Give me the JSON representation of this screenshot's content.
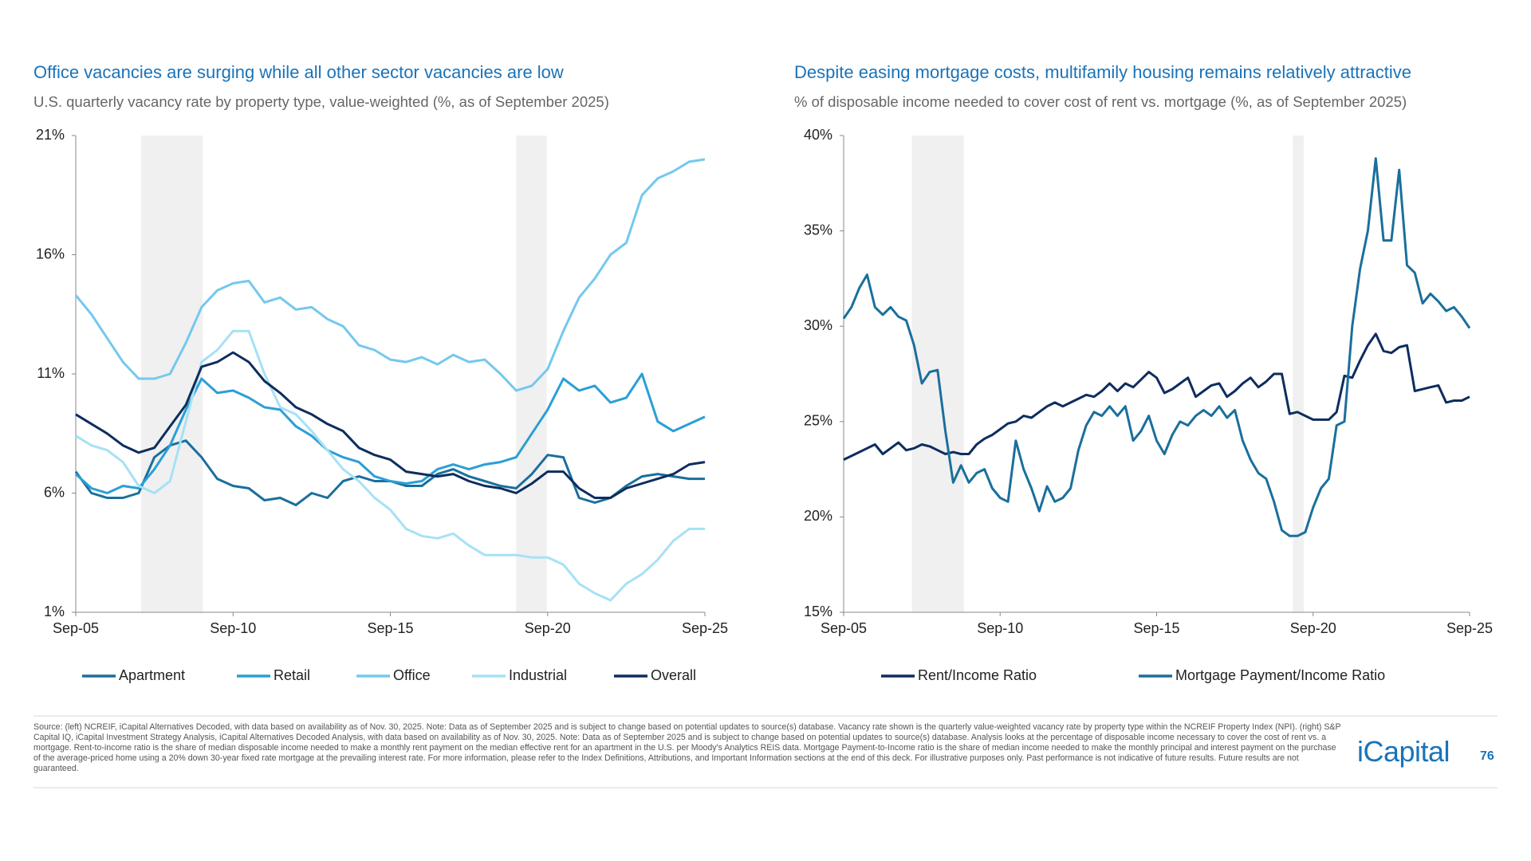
{
  "chart_data": [
    {
      "type": "line",
      "title": "Office vacancies are surging while all other sector vacancies are low",
      "subtitle": "U.S. quarterly vacancy rate by property type, value-weighted (%, as of September 2025)",
      "x": [
        2005.75,
        2006.25,
        2006.75,
        2007.25,
        2007.75,
        2008.25,
        2008.75,
        2009.25,
        2009.75,
        2010.25,
        2010.75,
        2011.25,
        2011.75,
        2012.25,
        2012.75,
        2013.25,
        2013.75,
        2014.25,
        2014.75,
        2015.25,
        2015.75,
        2016.25,
        2016.75,
        2017.25,
        2017.75,
        2018.25,
        2018.75,
        2019.25,
        2019.75,
        2020.25,
        2020.75,
        2021.25,
        2021.75,
        2022.25,
        2022.75,
        2023.25,
        2023.75,
        2024.25,
        2024.75,
        2025.25,
        2025.75
      ],
      "xlim": [
        2005.75,
        2025.75
      ],
      "xticks": [
        {
          "value": 2005.75,
          "label": "Sep-05"
        },
        {
          "value": 2010.75,
          "label": "Sep-10"
        },
        {
          "value": 2015.75,
          "label": "Sep-15"
        },
        {
          "value": 2020.75,
          "label": "Sep-20"
        },
        {
          "value": 2025.75,
          "label": "Sep-25"
        }
      ],
      "ylim": [
        1,
        21
      ],
      "yticks": [
        {
          "value": 1,
          "label": "1%"
        },
        {
          "value": 6,
          "label": "6%"
        },
        {
          "value": 11,
          "label": "11%"
        },
        {
          "value": 16,
          "label": "16%"
        },
        {
          "value": 21,
          "label": "21%"
        }
      ],
      "shaded_ranges": [
        [
          2007.83,
          2009.79
        ],
        [
          2019.75,
          2020.72
        ]
      ],
      "series": [
        {
          "name": "Apartment",
          "color": "#1a6f9c",
          "values": [
            6.9,
            6.0,
            5.8,
            5.8,
            6.0,
            7.5,
            8.0,
            8.2,
            7.5,
            6.6,
            6.3,
            6.2,
            5.7,
            5.8,
            5.5,
            6.0,
            5.8,
            6.5,
            6.7,
            6.5,
            6.5,
            6.3,
            6.3,
            6.8,
            7.0,
            6.7,
            6.5,
            6.3,
            6.2,
            6.8,
            7.6,
            7.5,
            5.8,
            5.6,
            5.8,
            6.3,
            6.7,
            6.8,
            6.7,
            6.6,
            6.6
          ]
        },
        {
          "name": "Retail",
          "color": "#2a9fd6",
          "values": [
            6.8,
            6.2,
            6.0,
            6.3,
            6.2,
            7.0,
            8.0,
            9.5,
            10.8,
            10.2,
            10.3,
            10.0,
            9.6,
            9.5,
            8.8,
            8.4,
            7.8,
            7.5,
            7.3,
            6.7,
            6.5,
            6.4,
            6.5,
            7.0,
            7.2,
            7.0,
            7.2,
            7.3,
            7.5,
            8.5,
            9.5,
            10.8,
            10.3,
            10.5,
            9.8,
            10.0,
            11.0,
            9.0,
            8.6,
            8.9,
            9.2
          ]
        },
        {
          "name": "Office",
          "color": "#74c8ee",
          "values": [
            14.3,
            13.5,
            12.5,
            11.5,
            10.8,
            10.8,
            11.0,
            12.3,
            13.8,
            14.5,
            14.8,
            14.9,
            14.0,
            14.2,
            13.7,
            13.8,
            13.3,
            13.0,
            12.2,
            12.0,
            11.6,
            11.5,
            11.7,
            11.4,
            11.8,
            11.5,
            11.6,
            11.0,
            10.3,
            10.5,
            11.2,
            12.8,
            14.2,
            15.0,
            16.0,
            16.5,
            18.5,
            19.2,
            19.5,
            19.9,
            20.0
          ]
        },
        {
          "name": "Industrial",
          "color": "#a6e1f5",
          "values": [
            8.4,
            8.0,
            7.8,
            7.3,
            6.3,
            6.0,
            6.5,
            9.0,
            11.5,
            12.0,
            12.8,
            12.8,
            11.0,
            9.6,
            9.3,
            8.6,
            7.8,
            7.0,
            6.5,
            5.8,
            5.3,
            4.5,
            4.2,
            4.1,
            4.3,
            3.8,
            3.4,
            3.4,
            3.4,
            3.3,
            3.3,
            3.0,
            2.2,
            1.8,
            1.5,
            2.2,
            2.6,
            3.2,
            4.0,
            4.5,
            4.5
          ]
        },
        {
          "name": "Overall",
          "color": "#0d2d5e",
          "values": [
            9.3,
            8.9,
            8.5,
            8.0,
            7.7,
            7.9,
            8.8,
            9.7,
            11.3,
            11.5,
            11.9,
            11.5,
            10.7,
            10.2,
            9.6,
            9.3,
            8.9,
            8.6,
            7.9,
            7.6,
            7.4,
            6.9,
            6.8,
            6.7,
            6.8,
            6.5,
            6.3,
            6.2,
            6.0,
            6.4,
            6.9,
            6.9,
            6.2,
            5.8,
            5.8,
            6.2,
            6.4,
            6.6,
            6.8,
            7.2,
            7.3
          ]
        }
      ]
    },
    {
      "type": "line",
      "title": "Despite easing mortgage costs, multifamily housing remains relatively attractive",
      "subtitle": "% of disposable income needed to cover cost of rent vs. mortgage (%, as of September 2025)",
      "x": [
        2005.75,
        2006,
        2006.25,
        2006.5,
        2006.75,
        2007,
        2007.25,
        2007.5,
        2007.75,
        2008,
        2008.25,
        2008.5,
        2008.75,
        2009,
        2009.25,
        2009.5,
        2009.75,
        2010,
        2010.25,
        2010.5,
        2010.75,
        2011,
        2011.25,
        2011.5,
        2011.75,
        2012,
        2012.25,
        2012.5,
        2012.75,
        2013,
        2013.25,
        2013.5,
        2013.75,
        2014,
        2014.25,
        2014.5,
        2014.75,
        2015,
        2015.25,
        2015.5,
        2015.75,
        2016,
        2016.25,
        2016.5,
        2016.75,
        2017,
        2017.25,
        2017.5,
        2017.75,
        2018,
        2018.25,
        2018.5,
        2018.75,
        2019,
        2019.25,
        2019.5,
        2019.75,
        2020,
        2020.25,
        2020.5,
        2020.75,
        2021,
        2021.25,
        2021.5,
        2021.75,
        2022,
        2022.25,
        2022.5,
        2022.75,
        2023,
        2023.25,
        2023.5,
        2023.75,
        2024,
        2024.25,
        2024.5,
        2024.75,
        2025,
        2025.25,
        2025.5,
        2025.75
      ],
      "xlim": [
        2005.75,
        2025.75
      ],
      "xticks": [
        {
          "value": 2005.75,
          "label": "Sep-05"
        },
        {
          "value": 2010.75,
          "label": "Sep-10"
        },
        {
          "value": 2015.75,
          "label": "Sep-15"
        },
        {
          "value": 2020.75,
          "label": "Sep-20"
        },
        {
          "value": 2025.75,
          "label": "Sep-25"
        }
      ],
      "ylim": [
        15,
        40
      ],
      "yticks": [
        {
          "value": 15,
          "label": "15%"
        },
        {
          "value": 20,
          "label": "20%"
        },
        {
          "value": 25,
          "label": "25%"
        },
        {
          "value": 30,
          "label": "30%"
        },
        {
          "value": 35,
          "label": "35%"
        },
        {
          "value": 40,
          "label": "40%"
        }
      ],
      "shaded_ranges": [
        [
          2007.93,
          2009.59
        ],
        [
          2020.1,
          2020.45
        ]
      ],
      "series": [
        {
          "name": "Rent/Income Ratio",
          "color": "#0d2d5e",
          "values": [
            23.0,
            23.2,
            23.4,
            23.6,
            23.8,
            23.3,
            23.6,
            23.9,
            23.5,
            23.6,
            23.8,
            23.7,
            23.5,
            23.3,
            23.4,
            23.3,
            23.3,
            23.8,
            24.1,
            24.3,
            24.6,
            24.9,
            25.0,
            25.3,
            25.2,
            25.5,
            25.8,
            26.0,
            25.8,
            26.0,
            26.2,
            26.4,
            26.3,
            26.6,
            27.0,
            26.6,
            27.0,
            26.8,
            27.2,
            27.6,
            27.3,
            26.5,
            26.7,
            27.0,
            27.3,
            26.3,
            26.6,
            26.9,
            27.0,
            26.3,
            26.6,
            27.0,
            27.3,
            26.8,
            27.1,
            27.5,
            27.5,
            25.4,
            25.5,
            25.3,
            25.1,
            25.1,
            25.1,
            25.5,
            27.4,
            27.3,
            28.2,
            29.0,
            29.6,
            28.7,
            28.6,
            28.9,
            29.0,
            26.6,
            26.7,
            26.8,
            26.9,
            26.0,
            26.1,
            26.1,
            26.3
          ]
        },
        {
          "name": "Mortgage Payment/Income Ratio",
          "color": "#1a6f9c",
          "values": [
            30.4,
            31.0,
            32.0,
            32.7,
            31.0,
            30.6,
            31.0,
            30.5,
            30.3,
            29.0,
            27.0,
            27.6,
            27.7,
            24.5,
            21.8,
            22.7,
            21.8,
            22.3,
            22.5,
            21.5,
            21.0,
            20.8,
            24.0,
            22.5,
            21.5,
            20.3,
            21.6,
            20.8,
            21.0,
            21.5,
            23.5,
            24.8,
            25.5,
            25.3,
            25.8,
            25.3,
            25.8,
            24.0,
            24.5,
            25.3,
            24.0,
            23.3,
            24.3,
            25.0,
            24.8,
            25.3,
            25.6,
            25.3,
            25.8,
            25.2,
            25.6,
            24.0,
            23.0,
            22.3,
            22.0,
            20.8,
            19.3,
            19.0,
            19.0,
            19.2,
            20.5,
            21.5,
            22.0,
            24.8,
            25.0,
            30.0,
            33.0,
            35.0,
            38.8,
            34.5,
            34.5,
            38.2,
            33.2,
            32.8,
            31.2,
            31.7,
            31.3,
            30.8,
            31.0,
            30.5,
            29.9
          ]
        }
      ]
    }
  ],
  "footnote": "Source: (left) NCREIF, iCapital Alternatives Decoded, with data based on availability as of Nov. 30, 2025. Note: Data as of September 2025 and is subject to change based on potential updates to source(s) database. Vacancy rate shown is the quarterly value-weighted vacancy rate by property type within the NCREIF Property Index (NPI). (right) S&P Capital IQ, iCapital Investment Strategy Analysis, iCapital Alternatives Decoded Analysis, with data based on availability as of Nov. 30, 2025. Note: Data as of September 2025 and is subject to change based on potential updates to source(s) database. Analysis looks at the percentage of disposable income necessary to cover the cost of rent vs. a mortgage. Rent-to-income ratio is the share of median disposable income needed to make a monthly rent payment on the median effective rent for an apartment in the U.S. per Moody's Analytics REIS data. Mortgage Payment-to-Income ratio is the share of median income needed to make the monthly principal and interest payment on the purchase of the average-priced home using a 20% down 30-year fixed rate mortgage at the prevailing interest rate. For more information, please refer to the Index Definitions, Attributions, and Important Information sections at the end of this deck. For illustrative purposes only. Past performance is not indicative of future results. Future results are not guaranteed.",
  "logo": "iCapital",
  "page_number": "76"
}
